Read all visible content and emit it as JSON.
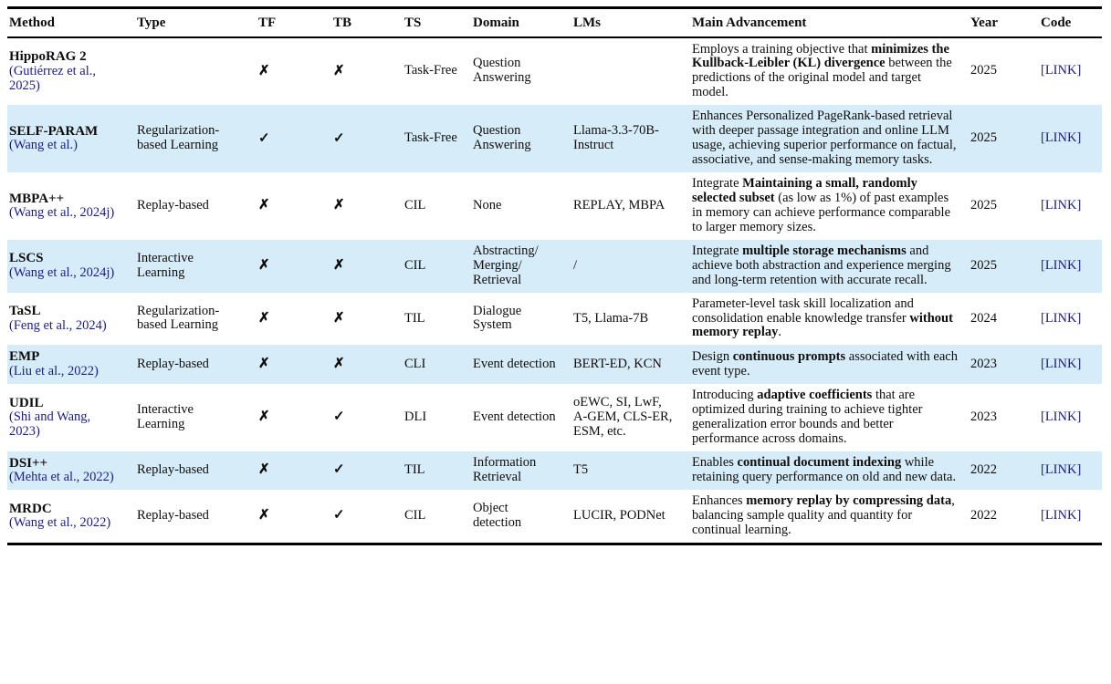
{
  "colors": {
    "highlight": "#d6ecf8",
    "link": "#1c1c90",
    "text": "#0d0d0d",
    "rule": "#000000"
  },
  "icons": {
    "yes": "✓",
    "no": "✗"
  },
  "table": {
    "columns": [
      {
        "key": "method",
        "label": "Method"
      },
      {
        "key": "type",
        "label": "Type"
      },
      {
        "key": "tf",
        "label": "TF"
      },
      {
        "key": "tb",
        "label": "TB"
      },
      {
        "key": "ts",
        "label": "TS"
      },
      {
        "key": "domain",
        "label": "Domain"
      },
      {
        "key": "lms",
        "label": "LMs"
      },
      {
        "key": "adv",
        "label": "Main Advancement"
      },
      {
        "key": "year",
        "label": "Year"
      },
      {
        "key": "code",
        "label": "Code"
      }
    ],
    "link_label": "[LINK]",
    "rows": [
      {
        "method": "HippoRAG 2",
        "citation": "(Gutiérrez et al., 2025)",
        "type": "",
        "tf": "no",
        "tb": "no",
        "ts": "Task-Free",
        "domain": "Question Answering",
        "lms": "",
        "adv": [
          {
            "text": "Employs a training objective that ",
            "bold": false
          },
          {
            "text": "minimizes the Kullback-Leibler (KL) divergence",
            "bold": true
          },
          {
            "text": " between the predictions of the original model and target model.",
            "bold": false
          }
        ],
        "year": "2025",
        "highlight": false
      },
      {
        "method": "SELF-PARAM",
        "citation": "(Wang et al.)",
        "type": "Regularization-based Learning",
        "tf": "yes",
        "tb": "yes",
        "ts": "Task-Free",
        "domain": "Question Answering",
        "lms": "Llama-3.3-70B-Instruct",
        "adv": [
          {
            "text": "Enhances Personalized PageRank-based retrieval with deeper passage integration and online LLM usage, achieving superior performance on factual, associative, and sense-making memory tasks.",
            "bold": false
          }
        ],
        "year": "2025",
        "highlight": true
      },
      {
        "method": "MBPA++",
        "citation": "(Wang et al., 2024j)",
        "type": "Replay-based",
        "tf": "no",
        "tb": "no",
        "ts": "CIL",
        "domain": "None",
        "lms": "REPLAY, MBPA",
        "adv": [
          {
            "text": "Integrate ",
            "bold": false
          },
          {
            "text": "Maintaining a small, randomly selected subset",
            "bold": true
          },
          {
            "text": " (as low as 1%) of past examples in memory can achieve performance comparable to larger memory sizes.",
            "bold": false
          }
        ],
        "year": "2025",
        "highlight": false
      },
      {
        "method": "LSCS",
        "citation": "(Wang et al., 2024j)",
        "type": "Interactive Learning",
        "tf": "no",
        "tb": "no",
        "ts": "CIL",
        "domain": "Abstracting/Merging/Retrieval",
        "lms": "/",
        "adv": [
          {
            "text": "Integrate ",
            "bold": false
          },
          {
            "text": "multiple storage mechanisms",
            "bold": true
          },
          {
            "text": " and achieve both abstraction and experience merging and long-term retention with accurate recall.",
            "bold": false
          }
        ],
        "year": "2025",
        "highlight": true
      },
      {
        "method": "TaSL",
        "citation": "(Feng et al., 2024)",
        "type": "Regularization-based Learning",
        "tf": "no",
        "tb": "no",
        "ts": "TIL",
        "domain": "Dialogue System",
        "lms": "T5, Llama-7B",
        "adv": [
          {
            "text": "Parameter-level task skill localization and consolidation enable knowledge transfer ",
            "bold": false
          },
          {
            "text": "without memory replay",
            "bold": true
          },
          {
            "text": ".",
            "bold": false
          }
        ],
        "year": "2024",
        "highlight": false
      },
      {
        "method": "EMP",
        "citation": "(Liu et al., 2022)",
        "type": "Replay-based",
        "tf": "no",
        "tb": "no",
        "ts": "CLI",
        "domain": "Event detection",
        "lms": "BERT-ED, KCN",
        "adv": [
          {
            "text": "Design ",
            "bold": false
          },
          {
            "text": "continuous prompts",
            "bold": true
          },
          {
            "text": " associated with each event type.",
            "bold": false
          }
        ],
        "year": "2023",
        "highlight": true
      },
      {
        "method": "UDIL",
        "citation": "(Shi and Wang, 2023)",
        "type": "Interactive Learning",
        "tf": "no",
        "tb": "yes",
        "ts": "DLI",
        "domain": "Event detection",
        "lms": "oEWC, SI, LwF, A-GEM, CLS-ER, ESM, etc.",
        "adv": [
          {
            "text": "Introducing ",
            "bold": false
          },
          {
            "text": "adaptive coefficients",
            "bold": true
          },
          {
            "text": " that are optimized during training to achieve tighter generalization error bounds and better performance across domains.",
            "bold": false
          }
        ],
        "year": "2023",
        "highlight": false
      },
      {
        "method": "DSI++",
        "citation": "(Mehta et al., 2022)",
        "type": "Replay-based",
        "tf": "no",
        "tb": "yes",
        "ts": "TIL",
        "domain": "Information Retrieval",
        "lms": "T5",
        "adv": [
          {
            "text": "Enables ",
            "bold": false
          },
          {
            "text": "continual document indexing",
            "bold": true
          },
          {
            "text": " while retaining query performance on old and new data.",
            "bold": false
          }
        ],
        "year": "2022",
        "highlight": true
      },
      {
        "method": "MRDC",
        "citation": "(Wang et al., 2022)",
        "type": "Replay-based",
        "tf": "no",
        "tb": "yes",
        "ts": "CIL",
        "domain": "Object detection",
        "lms": "LUCIR, PODNet",
        "adv": [
          {
            "text": "Enhances ",
            "bold": false
          },
          {
            "text": "memory replay by compressing data",
            "bold": true
          },
          {
            "text": ", balancing sample quality and quantity for continual learning.",
            "bold": false
          }
        ],
        "year": "2022",
        "highlight": false
      }
    ]
  }
}
